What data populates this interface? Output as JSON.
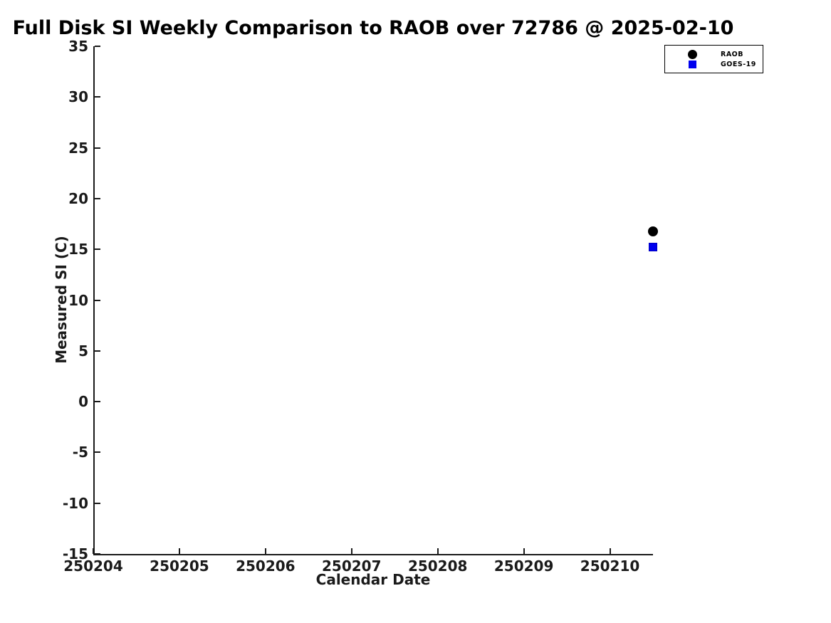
{
  "figure": {
    "background": "#ffffff",
    "text_color": "#000000",
    "axis_color": "#1a1a1a"
  },
  "chart_data": {
    "type": "scatter",
    "title": "Full Disk SI Weekly Comparison to RAOB over 72786 @ 2025-02-10",
    "xlabel": "Calendar Date",
    "ylabel": "Measured SI (C)",
    "xlim": [
      250204,
      250210.5
    ],
    "ylim": [
      -15,
      35
    ],
    "xticks": [
      250204,
      250205,
      250206,
      250207,
      250208,
      250209,
      250210
    ],
    "yticks": [
      -15,
      -10,
      -5,
      0,
      5,
      10,
      15,
      20,
      25,
      30,
      35
    ],
    "grid": false,
    "legend": {
      "position": "top-right",
      "entries": [
        {
          "label": "RAOB",
          "marker": "circle",
          "color": "#000000"
        },
        {
          "label": "GOES-19",
          "marker": "square",
          "color": "#0000ee"
        }
      ]
    },
    "series": [
      {
        "name": "RAOB",
        "marker": "circle",
        "color": "#000000",
        "points": [
          {
            "x": 250210.5,
            "y": 16.8
          }
        ]
      },
      {
        "name": "GOES-19",
        "marker": "square",
        "color": "#0000ee",
        "points": [
          {
            "x": 250210.5,
            "y": 15.2
          }
        ]
      }
    ]
  }
}
